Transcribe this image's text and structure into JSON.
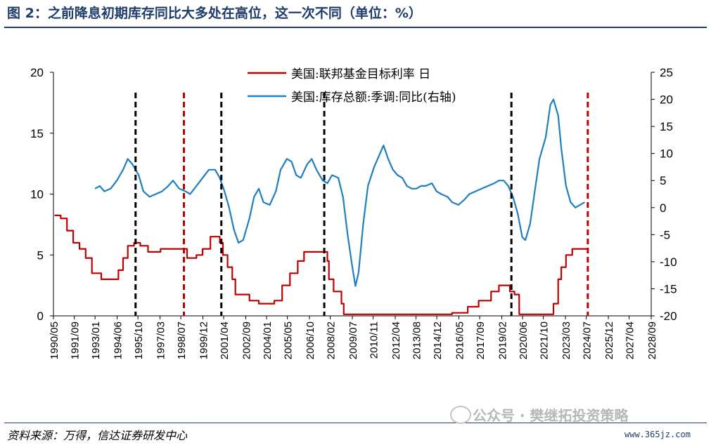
{
  "header": {
    "title": "图 2：之前降息初期库存同比大多处在高位，这一次不同（单位：%）"
  },
  "footer": {
    "source": "资料来源：万得，信达证券研发中心",
    "watermark": "公众号 · 樊继拓投资策略",
    "watermark_url": "www.365jz.com"
  },
  "chart_data": {
    "type": "line",
    "title": "",
    "xlabel": "",
    "ylabel": "",
    "x_tick_labels": [
      "1990/05",
      "1991/09",
      "1993/01",
      "1994/06",
      "1995/10",
      "1997/03",
      "1998/07",
      "1999/12",
      "2001/04",
      "2002/09",
      "2004/01",
      "2005/05",
      "2006/10",
      "2008/02",
      "2009/07",
      "2010/11",
      "2012/04",
      "2013/08",
      "2014/12",
      "2016/05",
      "2017/09",
      "2019/02",
      "2020/06",
      "2021/10",
      "2023/03",
      "2024/07",
      "2025/12",
      "2027/04",
      "2028/09"
    ],
    "xlim": [
      "1990/05",
      "2028/09"
    ],
    "ylim_left": [
      0,
      20
    ],
    "yticks_left": [
      0,
      5,
      10,
      15,
      20
    ],
    "ylim_right": [
      -20,
      25
    ],
    "yticks_right": [
      -20,
      -15,
      -10,
      -5,
      0,
      5,
      10,
      15,
      20,
      25
    ],
    "legend_position": "top-center",
    "series": [
      {
        "name": "美国:联邦基金目标利率  日",
        "axis": "left",
        "color": "#c00000",
        "points": [
          [
            1990.4,
            8.25
          ],
          [
            1990.8,
            8.0
          ],
          [
            1991.2,
            7.0
          ],
          [
            1991.6,
            6.0
          ],
          [
            1992.0,
            5.5
          ],
          [
            1992.4,
            4.75
          ],
          [
            1992.8,
            3.5
          ],
          [
            1993.4,
            3.0
          ],
          [
            1994.1,
            3.0
          ],
          [
            1994.5,
            3.75
          ],
          [
            1994.8,
            4.75
          ],
          [
            1995.1,
            5.75
          ],
          [
            1995.5,
            6.0
          ],
          [
            1995.9,
            5.75
          ],
          [
            1996.4,
            5.25
          ],
          [
            1997.2,
            5.5
          ],
          [
            1998.6,
            5.5
          ],
          [
            1998.9,
            4.75
          ],
          [
            1999.5,
            5.0
          ],
          [
            1999.9,
            5.5
          ],
          [
            2000.4,
            6.5
          ],
          [
            2001.0,
            6.0
          ],
          [
            2001.2,
            5.0
          ],
          [
            2001.5,
            4.0
          ],
          [
            2001.8,
            3.0
          ],
          [
            2002.0,
            1.75
          ],
          [
            2002.9,
            1.25
          ],
          [
            2003.5,
            1.0
          ],
          [
            2004.5,
            1.25
          ],
          [
            2005.0,
            2.5
          ],
          [
            2005.5,
            3.5
          ],
          [
            2006.0,
            4.5
          ],
          [
            2006.4,
            5.25
          ],
          [
            2007.7,
            5.25
          ],
          [
            2007.9,
            4.5
          ],
          [
            2008.0,
            3.0
          ],
          [
            2008.3,
            2.0
          ],
          [
            2008.8,
            1.0
          ],
          [
            2008.95,
            0.125
          ],
          [
            2015.9,
            0.25
          ],
          [
            2016.9,
            0.75
          ],
          [
            2017.6,
            1.25
          ],
          [
            2018.4,
            2.0
          ],
          [
            2018.9,
            2.5
          ],
          [
            2019.5,
            2.5
          ],
          [
            2019.6,
            2.0
          ],
          [
            2019.9,
            1.75
          ],
          [
            2020.2,
            0.125
          ],
          [
            2022.1,
            0.125
          ],
          [
            2022.4,
            1.0
          ],
          [
            2022.7,
            3.0
          ],
          [
            2022.9,
            4.0
          ],
          [
            2023.2,
            5.0
          ],
          [
            2023.6,
            5.5
          ],
          [
            2024.6,
            5.5
          ]
        ]
      },
      {
        "name": "美国:库存总额:季调:同比(右轴)",
        "axis": "right",
        "color": "#1f7fc0",
        "points": [
          [
            1993.0,
            3.5
          ],
          [
            1993.3,
            4.0
          ],
          [
            1993.6,
            3.0
          ],
          [
            1994.0,
            3.5
          ],
          [
            1994.4,
            5.0
          ],
          [
            1994.8,
            7.0
          ],
          [
            1995.1,
            9.0
          ],
          [
            1995.4,
            8.0
          ],
          [
            1995.8,
            6.0
          ],
          [
            1996.1,
            3.0
          ],
          [
            1996.5,
            2.0
          ],
          [
            1996.9,
            2.5
          ],
          [
            1997.3,
            3.0
          ],
          [
            1997.7,
            4.0
          ],
          [
            1998.0,
            5.0
          ],
          [
            1998.4,
            3.5
          ],
          [
            1998.8,
            3.0
          ],
          [
            1999.1,
            2.5
          ],
          [
            1999.5,
            4.0
          ],
          [
            1999.9,
            5.5
          ],
          [
            2000.3,
            7.0
          ],
          [
            2000.7,
            7.0
          ],
          [
            2001.0,
            5.5
          ],
          [
            2001.3,
            3.0
          ],
          [
            2001.6,
            0.0
          ],
          [
            2001.9,
            -4.0
          ],
          [
            2002.2,
            -6.5
          ],
          [
            2002.5,
            -6.0
          ],
          [
            2002.9,
            -2.0
          ],
          [
            2003.2,
            2.0
          ],
          [
            2003.5,
            3.5
          ],
          [
            2003.8,
            1.0
          ],
          [
            2004.2,
            0.5
          ],
          [
            2004.6,
            3.0
          ],
          [
            2004.9,
            7.0
          ],
          [
            2005.3,
            9.0
          ],
          [
            2005.6,
            8.5
          ],
          [
            2005.9,
            6.0
          ],
          [
            2006.2,
            5.5
          ],
          [
            2006.6,
            8.0
          ],
          [
            2006.9,
            9.0
          ],
          [
            2007.2,
            7.0
          ],
          [
            2007.6,
            5.0
          ],
          [
            2007.9,
            4.5
          ],
          [
            2008.2,
            6.0
          ],
          [
            2008.6,
            5.5
          ],
          [
            2008.9,
            2.0
          ],
          [
            2009.2,
            -5.0
          ],
          [
            2009.5,
            -11.0
          ],
          [
            2009.7,
            -14.5
          ],
          [
            2009.9,
            -12.0
          ],
          [
            2010.2,
            -3.0
          ],
          [
            2010.5,
            4.0
          ],
          [
            2010.9,
            7.5
          ],
          [
            2011.2,
            9.5
          ],
          [
            2011.5,
            11.5
          ],
          [
            2011.8,
            9.0
          ],
          [
            2012.1,
            7.0
          ],
          [
            2012.4,
            6.0
          ],
          [
            2012.7,
            5.5
          ],
          [
            2013.0,
            4.0
          ],
          [
            2013.3,
            3.5
          ],
          [
            2013.6,
            3.5
          ],
          [
            2013.9,
            4.0
          ],
          [
            2014.2,
            4.0
          ],
          [
            2014.6,
            4.5
          ],
          [
            2014.9,
            3.0
          ],
          [
            2015.2,
            2.5
          ],
          [
            2015.6,
            2.0
          ],
          [
            2015.9,
            1.0
          ],
          [
            2016.3,
            0.5
          ],
          [
            2016.7,
            1.5
          ],
          [
            2017.0,
            2.5
          ],
          [
            2017.4,
            3.0
          ],
          [
            2017.8,
            3.5
          ],
          [
            2018.2,
            4.0
          ],
          [
            2018.6,
            4.5
          ],
          [
            2018.9,
            5.0
          ],
          [
            2019.2,
            5.0
          ],
          [
            2019.5,
            4.0
          ],
          [
            2019.8,
            2.0
          ],
          [
            2020.1,
            -1.0
          ],
          [
            2020.4,
            -5.5
          ],
          [
            2020.6,
            -6.0
          ],
          [
            2020.9,
            -3.0
          ],
          [
            2021.2,
            3.0
          ],
          [
            2021.5,
            9.0
          ],
          [
            2021.9,
            13.0
          ],
          [
            2022.2,
            19.0
          ],
          [
            2022.4,
            20.0
          ],
          [
            2022.7,
            17.0
          ],
          [
            2022.9,
            11.0
          ],
          [
            2023.2,
            4.0
          ],
          [
            2023.5,
            1.0
          ],
          [
            2023.8,
            0.0
          ],
          [
            2024.1,
            0.5
          ],
          [
            2024.4,
            1.0
          ]
        ]
      }
    ],
    "vertical_markers": [
      {
        "x": 1995.6,
        "color": "#000000",
        "style": "dashed"
      },
      {
        "x": 1998.7,
        "color": "#c00000",
        "style": "dashed"
      },
      {
        "x": 2001.1,
        "color": "#000000",
        "style": "dashed"
      },
      {
        "x": 2007.7,
        "color": "#000000",
        "style": "dashed"
      },
      {
        "x": 2019.7,
        "color": "#000000",
        "style": "dashed"
      },
      {
        "x": 2024.6,
        "color": "#c00000",
        "style": "dashed"
      }
    ]
  }
}
